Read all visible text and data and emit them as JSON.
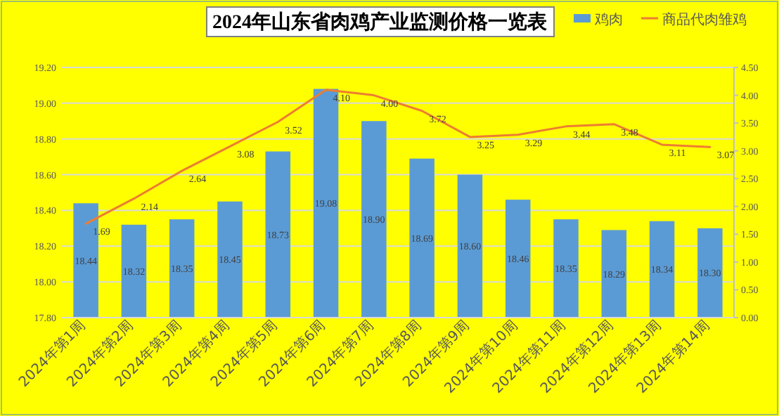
{
  "chart_data": {
    "type": "bar",
    "title": "2024年山东省肉鸡产业监测价格一览表",
    "categories": [
      "2024年第1周",
      "2024年第2周",
      "2024年第3周",
      "2024年第4周",
      "2024年第5周",
      "2024年第6周",
      "2024年第7周",
      "2024年第8周",
      "2024年第9周",
      "2024年第10周",
      "2024年第11周",
      "2024年第12周",
      "2024年第13周",
      "2024年第14周"
    ],
    "series": [
      {
        "name": "鸡肉",
        "color": "#5b9bd5",
        "values": [
          18.44,
          18.32,
          18.35,
          18.45,
          18.73,
          19.08,
          18.9,
          18.69,
          18.6,
          18.46,
          18.35,
          18.29,
          18.34,
          18.3
        ],
        "value_labels": [
          "18.44",
          "18.32",
          "18.35",
          "18.45",
          "18.73",
          "19.08",
          "18.90",
          "18.69",
          "18.60",
          "18.46",
          "18.35",
          "18.29",
          "18.34",
          "18.30"
        ]
      },
      {
        "name": "商品代肉雏鸡",
        "type": "line",
        "axis": "y2",
        "color": "#ed7d31",
        "values": [
          1.69,
          2.14,
          2.64,
          3.08,
          3.52,
          4.1,
          4.0,
          3.72,
          3.25,
          3.29,
          3.44,
          3.48,
          3.11,
          3.07
        ],
        "value_labels": [
          "1.69",
          "2.14",
          "2.64",
          "3.08",
          "3.52",
          "4.10",
          "4.00",
          "3.72",
          "3.25",
          "3.29",
          "3.44",
          "3.48",
          "3.11",
          "3.07"
        ]
      }
    ],
    "ylim": [
      17.8,
      19.2
    ],
    "yticks": [
      {
        "value": 17.8,
        "label": "17.80"
      },
      {
        "value": 18.0,
        "label": "18.00"
      },
      {
        "value": 18.2,
        "label": "18.20"
      },
      {
        "value": 18.4,
        "label": "18.40"
      },
      {
        "value": 18.6,
        "label": "18.60"
      },
      {
        "value": 18.8,
        "label": "18.80"
      },
      {
        "value": 19.0,
        "label": "19.00"
      },
      {
        "value": 19.2,
        "label": "19.20"
      }
    ],
    "y2lim": [
      0,
      4.5
    ],
    "y2ticks": [
      {
        "value": 0,
        "label": "0.00"
      },
      {
        "value": 0.5,
        "label": "0.50"
      },
      {
        "value": 1,
        "label": "1.00"
      },
      {
        "value": 1.5,
        "label": "1.50"
      },
      {
        "value": 2,
        "label": "2.00"
      },
      {
        "value": 2.5,
        "label": "2.50"
      },
      {
        "value": 3,
        "label": "3.00"
      },
      {
        "value": 3.5,
        "label": "3.50"
      },
      {
        "value": 4,
        "label": "4.00"
      },
      {
        "value": 4.5,
        "label": "4.50"
      }
    ],
    "grid": "y",
    "legend": "top right",
    "marker": "none",
    "line_style": "solid"
  }
}
